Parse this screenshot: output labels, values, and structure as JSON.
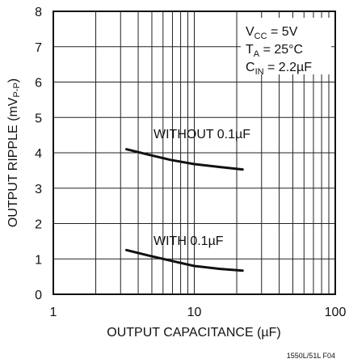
{
  "chart_data": {
    "type": "line",
    "x_scale": "log",
    "xlim": [
      1,
      100
    ],
    "ylim": [
      0,
      8
    ],
    "xticks": [
      "1",
      "10",
      "100"
    ],
    "yticks": [
      "0",
      "1",
      "2",
      "3",
      "4",
      "5",
      "6",
      "7",
      "8"
    ],
    "xlabel": "OUTPUT CAPACITANCE (µF)",
    "ylabel": {
      "main": "OUTPUT RIPPLE (mV",
      "sub": "P-P",
      "close": ")"
    },
    "grid": true,
    "conditions": [
      {
        "main": "V",
        "sub": "CC",
        "rest": " = 5V"
      },
      {
        "main": "T",
        "sub": "A",
        "rest": " = 25°C"
      },
      {
        "main": "C",
        "sub": "IN",
        "rest": " = 2.2µF"
      }
    ],
    "series": [
      {
        "name": "WITHOUT 0.1µF",
        "x": [
          3.3,
          4.7,
          6.8,
          10,
          15,
          22
        ],
        "y": [
          4.1,
          3.95,
          3.8,
          3.68,
          3.6,
          3.53
        ]
      },
      {
        "name": "WITH 0.1µF",
        "x": [
          3.3,
          4.7,
          6.8,
          10,
          15,
          22
        ],
        "y": [
          1.25,
          1.1,
          0.95,
          0.8,
          0.72,
          0.67
        ]
      }
    ],
    "figure_id": "1550L/51L F04"
  }
}
